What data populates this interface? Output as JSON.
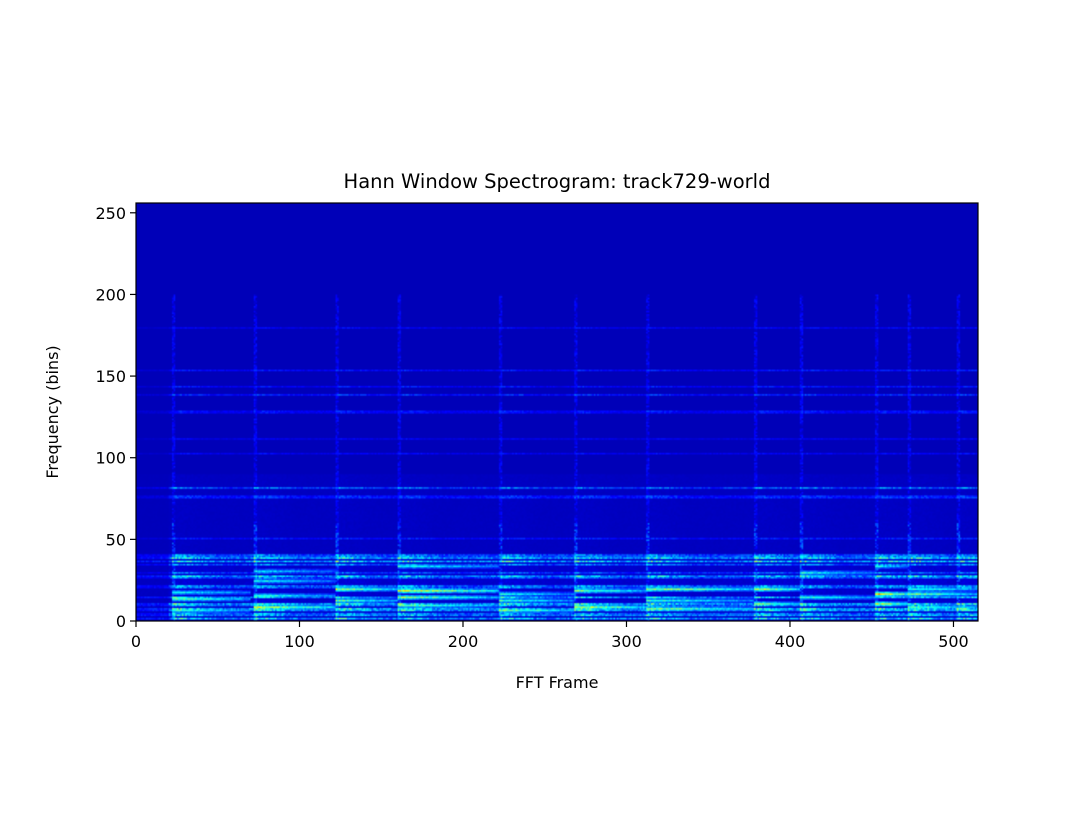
{
  "chart_data": {
    "type": "heatmap",
    "title": "Hann Window Spectrogram: track729-world",
    "xlabel": "FFT Frame",
    "ylabel": "Frequency (bins)",
    "xlim": [
      0,
      515
    ],
    "ylim": [
      0,
      256
    ],
    "xticks": [
      0,
      100,
      200,
      300,
      400,
      500
    ],
    "yticks": [
      0,
      50,
      100,
      150,
      200,
      250
    ],
    "colormap": "jet",
    "grid": false,
    "legend": "none",
    "background_color": "#00008b",
    "onsets": [
      22,
      72,
      122,
      160,
      222,
      268,
      312,
      378,
      406,
      452,
      472,
      502
    ],
    "loud_segments": [
      {
        "x": [
          22,
          70
        ],
        "bin": 6,
        "level": 0.5
      },
      {
        "x": [
          22,
          70
        ],
        "bin": 13,
        "level": 0.55
      },
      {
        "x": [
          22,
          70
        ],
        "bin": 17,
        "level": 0.45
      },
      {
        "x": [
          72,
          122
        ],
        "bin": 8,
        "level": 0.7
      },
      {
        "x": [
          72,
          122
        ],
        "bin": 15,
        "level": 0.5
      },
      {
        "x": [
          72,
          122
        ],
        "bin": 24,
        "level": 0.45
      },
      {
        "x": [
          72,
          122
        ],
        "bin": 30,
        "level": 0.4
      },
      {
        "x": [
          122,
          160
        ],
        "bin": 12,
        "level": 0.55
      },
      {
        "x": [
          122,
          160
        ],
        "bin": 19,
        "level": 0.65
      },
      {
        "x": [
          160,
          222
        ],
        "bin": 9,
        "level": 0.55
      },
      {
        "x": [
          160,
          222
        ],
        "bin": 14,
        "level": 0.6
      },
      {
        "x": [
          160,
          222
        ],
        "bin": 18,
        "level": 0.75
      },
      {
        "x": [
          160,
          222
        ],
        "bin": 33,
        "level": 0.45
      },
      {
        "x": [
          222,
          268
        ],
        "bin": 6,
        "level": 0.6
      },
      {
        "x": [
          222,
          268
        ],
        "bin": 12,
        "level": 0.5
      },
      {
        "x": [
          222,
          268
        ],
        "bin": 16,
        "level": 0.45
      },
      {
        "x": [
          268,
          312
        ],
        "bin": 8,
        "level": 0.7
      },
      {
        "x": [
          268,
          312
        ],
        "bin": 18,
        "level": 0.6
      },
      {
        "x": [
          312,
          378
        ],
        "bin": 7,
        "level": 0.6
      },
      {
        "x": [
          312,
          378
        ],
        "bin": 12,
        "level": 0.5
      },
      {
        "x": [
          312,
          378
        ],
        "bin": 19,
        "level": 0.65
      },
      {
        "x": [
          378,
          406
        ],
        "bin": 10,
        "level": 0.6
      },
      {
        "x": [
          378,
          406
        ],
        "bin": 19,
        "level": 0.7
      },
      {
        "x": [
          406,
          452
        ],
        "bin": 14,
        "level": 0.5
      },
      {
        "x": [
          406,
          452
        ],
        "bin": 29,
        "level": 0.45
      },
      {
        "x": [
          452,
          472
        ],
        "bin": 10,
        "level": 0.7
      },
      {
        "x": [
          452,
          472
        ],
        "bin": 16,
        "level": 0.85
      },
      {
        "x": [
          452,
          472
        ],
        "bin": 33,
        "level": 0.45
      },
      {
        "x": [
          472,
          515
        ],
        "bin": 8,
        "level": 0.55
      },
      {
        "x": [
          472,
          515
        ],
        "bin": 16,
        "level": 0.6
      },
      {
        "x": [
          472,
          515
        ],
        "bin": 19,
        "level": 0.5
      }
    ]
  }
}
